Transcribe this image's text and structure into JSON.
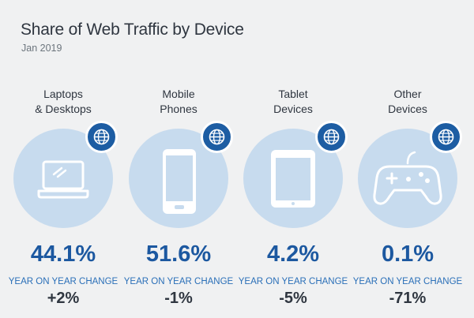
{
  "title": "Share of Web Traffic by Device",
  "subtitle": "Jan 2019",
  "colors": {
    "background": "#f0f1f2",
    "circle": "#c7dbee",
    "accent": "#1d5da3",
    "share_text": "#1c58a0",
    "yoy_label": "#2a6fb8",
    "text": "#2f3640"
  },
  "chart_data": {
    "type": "table",
    "title": "Share of Web Traffic by Device",
    "subtitle": "Jan 2019",
    "categories": [
      {
        "label_line1": "Laptops",
        "label_line2": "& Desktops",
        "share": "44.1%",
        "yoy_label": "YEAR ON YEAR CHANGE",
        "yoy_change": "+2%",
        "icon": "laptop-icon",
        "badge_icon": "globe-icon"
      },
      {
        "label_line1": "Mobile",
        "label_line2": "Phones",
        "share": "51.6%",
        "yoy_label": "YEAR ON YEAR CHANGE",
        "yoy_change": "-1%",
        "icon": "mobile-phone-icon",
        "badge_icon": "globe-icon"
      },
      {
        "label_line1": "Tablet",
        "label_line2": "Devices",
        "share": "4.2%",
        "yoy_label": "YEAR ON YEAR CHANGE",
        "yoy_change": "-5%",
        "icon": "tablet-icon",
        "badge_icon": "globe-icon"
      },
      {
        "label_line1": "Other",
        "label_line2": "Devices",
        "share": "0.1%",
        "yoy_label": "YEAR ON YEAR CHANGE",
        "yoy_change": "-71%",
        "icon": "game-controller-icon",
        "badge_icon": "globe-icon"
      }
    ]
  }
}
